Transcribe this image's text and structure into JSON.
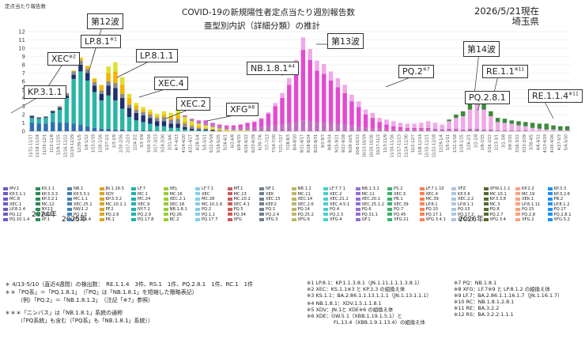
{
  "header": {
    "title": "COVID-19の新規陽性者定点当たり週別報告数",
    "subtitle": "亜型別内訳（詳細分類）の推計",
    "date": "2026/5/21現在",
    "location": "埼玉県",
    "y_unit_label": "定点当たり報告数"
  },
  "year_labels": [
    "2024年",
    "2025年",
    "2026年"
  ],
  "callouts": [
    {
      "name": "callout-kp311",
      "text": "KP.3.1.1",
      "sup": ""
    },
    {
      "name": "callout-xec",
      "text": "XEC",
      "sup": "※2"
    },
    {
      "name": "callout-lp81",
      "text": "LP.8.1",
      "sup": "※1"
    },
    {
      "name": "callout-wave12",
      "text": "第12波",
      "sup": ""
    },
    {
      "name": "callout-lp811",
      "text": "LP.8.1.1",
      "sup": ""
    },
    {
      "name": "callout-xec4",
      "text": "XEC.4",
      "sup": ""
    },
    {
      "name": "callout-xec2",
      "text": "XEC.2",
      "sup": ""
    },
    {
      "name": "callout-xfg",
      "text": "XFG",
      "sup": "※8"
    },
    {
      "name": "callout-nb181",
      "text": "NB.1.8.1",
      "sup": "※4"
    },
    {
      "name": "callout-wave13",
      "text": "第13波",
      "sup": ""
    },
    {
      "name": "callout-pq2",
      "text": "PQ.2",
      "sup": "※7"
    },
    {
      "name": "callout-wave14",
      "text": "第14波",
      "sup": ""
    },
    {
      "name": "callout-re11",
      "text": "RE.1.1",
      "sup": "※11"
    },
    {
      "name": "callout-pq281",
      "text": "PQ.2.8.1",
      "sup": ""
    },
    {
      "name": "callout-re114",
      "text": "RE.1.1.4",
      "sup": "※11"
    }
  ],
  "legend": [
    "MV.1",
    "KS.1.1",
    "NB.1",
    "JN.1.16.5",
    "LF.7",
    "XEL",
    "LF.7.1",
    "MT.1",
    "NF.1",
    "NB.1.2",
    "LF.7.7.1",
    "NB.1.3.1",
    "PS.2",
    "LF.7.1.10",
    "XFZ",
    "XFW.1.1.1",
    "KP.2.2",
    "KP.3.3",
    "KP.3.1.1",
    "KP.3.3.3",
    "KP.3.3.1",
    "XDY",
    "MC.1",
    "MC.16",
    "XEC",
    "MC.13",
    "XEK",
    "MC.11",
    "XEC.2",
    "MC.11",
    "XEC.5",
    "XEC.4",
    "KP.3.6",
    "MC.10.1",
    "MC.19",
    "KP.3.2.6",
    "MC.8",
    "KP.3.2.1",
    "MC.1.1",
    "KP.3.3.2",
    "MC.24",
    "XEC.2.1",
    "MC.28",
    "MC.10.2",
    "XEC.15",
    "XEC.14",
    "XEC.21.1",
    "XEC.20.1",
    "PB.1",
    "MC.39",
    "XEC.2.2",
    "KP.3.3.8",
    "XEK.1",
    "PB.2",
    "XEC.1",
    "MC.12",
    "XEC.25.1",
    "MC.10.2.1",
    "XEC.9",
    "XEC.18",
    "MC.10.1.6",
    "XEC.4.1",
    "KEP.2",
    "XEC.2.6",
    "XEC.4.5.1",
    "XEC.25.1.2",
    "XEC.39",
    "LP.8.1",
    "LP.8.1.1",
    "MC.3",
    "LP.8.1.11",
    "LP.8.1.2",
    "LP.8.1.4",
    "NY.13",
    "NW.1.2",
    "PF.2",
    "NY.7.1",
    "NB.1.8.1",
    "PQ.2",
    "PQ.5",
    "PQ.1",
    "PQ.14",
    "PQ.4",
    "PQ.6",
    "PQ.7",
    "PQ.10",
    "PQ.13",
    "PQ.8",
    "PQ.15",
    "PQ.17",
    "PQ.12",
    "PQ.2.1",
    "PQ.2.5",
    "PQ.2.6",
    "PQ.2.9",
    "PQ.26",
    "PQ.1.1",
    "PQ.34",
    "PQ.2.4",
    "PQ.25.2",
    "PQ.2.3",
    "PQ.31.1",
    "PQ.45",
    "PQ.17.1",
    "PQ.17.2",
    "PQ.2.7",
    "PQ.2.8",
    "PQ.2.8.1",
    "PQ.10.1.4",
    "XF.1",
    "PQ.2.4.4",
    "PK.1",
    "PQ.17.8",
    "RC.2",
    "PQ.17.7",
    "XFG",
    "XFG.3",
    "XFG.6",
    "XFG.4",
    "QF.1",
    "XFG.21",
    "XFG.3.4.1",
    "XFG.5.1",
    "XFG.3.4",
    "XFG.2",
    "XFG.5.2",
    "XFG.3.9",
    "XFG.3.4.5",
    "XFG.3.1",
    "RE.1.1",
    "RE.1.1.4",
    "RS.1"
  ],
  "footnotes": {
    "n1": "＊ 4/13-5/10（直近4週間）の検出数：　RE.1.1.4　3件、RS.1　1件、PQ.2.8.1　1件、RC.1　1件",
    "n2": "＊＊「PQ系」＝「PQ.1.8.1」　（「PQ」は「NB.1.8.1」を短縮した簡略表記）",
    "n3": "（例）「PQ.2」＝「NB.1.8.1.2」　（注記「※7」参照）",
    "n4": "＊＊＊「ニンバス」は「NB.1.8.1」系統の通称",
    "n5": "（「PQ系統」も含む（「PQ系」も「NB.1.8.1」系統））",
    "r1": "※1 LP.8.1：KP.1.1.3.8.1（JN.1.11.1.1.1.3.8.1）",
    "r2": "※2 XEC：KS.1.1※3 と KP.3.3 の組換え体",
    "r3": "※3 KS.1.1：BA.2.86.1.1.13.1.1.1（JN.1.13.1.1.1）",
    "r4": "※4 NB.1.8.1：XDV.1.5.1.1.8.1",
    "r5": "※5 XDV：JN.1と XDE※6 の組換え体",
    "r6": "※6 XDE：GW.5.1（XBB.1.19.1.5.1）と",
    "r6b": "FL.13.4（XBB.1.9.1.13.4）の組換え体",
    "r7": "※7 PQ：NB.1.8.1",
    "r8": "※8 XFG：LF.7※9 と LP.8.1.2 の組換え体",
    "r9": "※9 LF.7：BA.2.86.1.1.16.1.7（JN.1.16.1.7）",
    "r10": "※10 RC：NB.1.8.1.2.8.1",
    "r11": "※11 RE：BA.3.2.2",
    "r12": "※12 RS：BA.3.2.2.1.1.1"
  },
  "chart_data": {
    "type": "bar",
    "stacked": true,
    "ylim": [
      0,
      12
    ],
    "yticks": [
      0,
      1,
      2,
      3,
      4,
      5,
      6,
      7,
      8,
      9,
      10,
      11,
      12
    ],
    "grid": true,
    "x": [
      "11/11-11/17",
      "11/18-11/24",
      "11/25-12/1",
      "12/2-12/8",
      "12/9-12/15",
      "12/16-12/22",
      "12/23-12/29",
      "12/30-1/5",
      "1/6-1/12",
      "1/13-1/19",
      "1/20-1/26",
      "1/27-2/2",
      "2/3-2/9",
      "2/10-2/16",
      "2/17-2/23",
      "2/24-3/2",
      "3/3-3/9",
      "3/10-3/16",
      "3/17-3/23",
      "3/24-3/30",
      "3/31-4/6",
      "4/7-4/13",
      "4/14-4/20",
      "4/21-4/27",
      "4/28-5/4",
      "5/5-5/11",
      "5/12-5/18",
      "5/19-5/25",
      "5/26-6/1",
      "6/2-6/8",
      "6/9-6/15",
      "6/16-6/22",
      "6/23-6/29",
      "6/30-7/6",
      "7/7-7/13",
      "7/14-7/20",
      "7/21-7/27",
      "7/28-8/3",
      "8/4-8/10",
      "8/11-8/17",
      "8/18-8/24",
      "8/25-8/31",
      "9/1-9/7",
      "9/8-9/14",
      "9/15-9/21",
      "9/22-9/28",
      "9/29-10/5",
      "10/6-10/12",
      "10/13-10/19",
      "10/20-10/26",
      "10/27-11/2",
      "11/3-11/9",
      "11/10-11/16",
      "11/17-11/23",
      "11/24-11/30",
      "12/1-12/7",
      "12/8-12/14",
      "12/15-12/21",
      "12/22-12/28",
      "12/29-1/4",
      "1/5-1/11",
      "1/12-1/18",
      "1/19-1/25",
      "1/26-2/1",
      "2/2-2/8",
      "2/9-2/15",
      "2/16-2/22",
      "2/23-3/1",
      "3/2-3/8",
      "3/9-3/15",
      "3/16-3/22",
      "3/23-3/29",
      "3/30-4/5",
      "4/6-4/12",
      "4/13-4/19",
      "4/20-4/26",
      "4/27-5/3",
      "5/4-5/10"
    ],
    "totals": [
      1.9,
      1.7,
      1.8,
      2.5,
      3.0,
      4.6,
      7.3,
      8.9,
      7.9,
      6.4,
      5.6,
      7.8,
      8.3,
      6.5,
      4.5,
      3.4,
      2.9,
      2.6,
      2.1,
      2.4,
      2.2,
      2.7,
      1.9,
      1.5,
      1.3,
      1.3,
      1.0,
      0.8,
      0.7,
      0.7,
      0.8,
      1.0,
      1.2,
      1.6,
      2.3,
      3.4,
      4.6,
      6.4,
      8.6,
      11.3,
      9.9,
      8.5,
      8.1,
      7.2,
      6.4,
      5.6,
      4.4,
      3.6,
      2.6,
      2.2,
      1.6,
      1.4,
      1.2,
      1.0,
      0.9,
      0.9,
      1.0,
      1.2,
      1.0,
      0.8,
      1.4,
      2.0,
      2.4,
      3.3,
      4.0,
      3.3,
      2.4,
      1.6,
      1.5,
      1.3,
      1.2,
      1.1,
      1.0,
      0.9,
      0.9,
      0.7,
      0.6,
      0.6
    ],
    "series": [
      {
        "name": "KP.3.1.1",
        "color": "#2f6fb0",
        "values": [
          1.0,
          0.9,
          0.9,
          1.1,
          1.0,
          1.0,
          0.9,
          0.8,
          0.6,
          0.4,
          0.3,
          0.3,
          0.2,
          0.2,
          0.1,
          0.1,
          0.1,
          0.1,
          0,
          0,
          0,
          0,
          0,
          0,
          0,
          0,
          0,
          0,
          0,
          0,
          0,
          0,
          0,
          0,
          0,
          0,
          0,
          0,
          0,
          0,
          0,
          0,
          0,
          0,
          0,
          0,
          0,
          0,
          0,
          0,
          0,
          0,
          0,
          0,
          0,
          0,
          0,
          0,
          0,
          0,
          0,
          0,
          0,
          0,
          0,
          0,
          0,
          0,
          0,
          0,
          0,
          0,
          0,
          0,
          0,
          0,
          0,
          0
        ]
      },
      {
        "name": "XEC",
        "color": "#2bb5a5",
        "values": [
          0.6,
          0.6,
          0.7,
          1.1,
          1.6,
          3.0,
          5.4,
          6.4,
          5.5,
          4.3,
          3.4,
          4.0,
          3.5,
          2.5,
          1.6,
          1.2,
          1.0,
          0.8,
          0.6,
          0.6,
          0.4,
          0.4,
          0.2,
          0.1,
          0.1,
          0.1,
          0,
          0,
          0,
          0,
          0,
          0,
          0,
          0,
          0,
          0,
          0,
          0,
          0,
          0,
          0,
          0,
          0,
          0,
          0,
          0,
          0,
          0,
          0,
          0,
          0,
          0,
          0,
          0,
          0,
          0,
          0,
          0,
          0,
          0,
          0,
          0,
          0,
          0,
          0,
          0,
          0,
          0,
          0,
          0,
          0,
          0,
          0,
          0,
          0,
          0,
          0,
          0
        ]
      },
      {
        "name": "XEC.4",
        "color": "#1e2f6e",
        "values": [
          0.2,
          0.1,
          0.1,
          0.2,
          0.2,
          0.3,
          0.5,
          0.8,
          0.9,
          0.8,
          0.8,
          1.2,
          1.5,
          1.3,
          1.1,
          0.9,
          0.8,
          0.7,
          0.6,
          0.6,
          0.5,
          0.5,
          0.3,
          0.2,
          0.1,
          0.1,
          0.1,
          0,
          0,
          0,
          0,
          0,
          0,
          0,
          0,
          0,
          0,
          0,
          0,
          0,
          0,
          0,
          0,
          0,
          0,
          0,
          0,
          0,
          0,
          0,
          0,
          0,
          0,
          0,
          0,
          0,
          0,
          0,
          0,
          0,
          0,
          0,
          0,
          0,
          0,
          0,
          0,
          0,
          0,
          0,
          0,
          0,
          0,
          0,
          0,
          0,
          0,
          0
        ]
      },
      {
        "name": "XEC.2",
        "color": "#8a8a8a",
        "values": [
          0.1,
          0.1,
          0.1,
          0.1,
          0.2,
          0.3,
          0.4,
          0.5,
          0.5,
          0.4,
          0.4,
          0.5,
          0.6,
          0.5,
          0.4,
          0.4,
          0.4,
          0.4,
          0.4,
          0.5,
          0.5,
          0.6,
          0.4,
          0.3,
          0.2,
          0.1,
          0.1,
          0.1,
          0,
          0,
          0,
          0,
          0,
          0,
          0,
          0,
          0,
          0,
          0,
          0,
          0,
          0,
          0,
          0,
          0,
          0,
          0,
          0,
          0,
          0,
          0,
          0,
          0,
          0,
          0,
          0,
          0,
          0,
          0,
          0,
          0,
          0,
          0,
          0,
          0,
          0,
          0,
          0,
          0,
          0,
          0,
          0,
          0,
          0,
          0,
          0,
          0,
          0
        ]
      },
      {
        "name": "LP.8.1",
        "color": "#f2b400",
        "values": [
          0,
          0,
          0,
          0,
          0,
          0,
          0.1,
          0.3,
          0.3,
          0.4,
          0.6,
          1.0,
          1.4,
          1.1,
          0.8,
          0.5,
          0.3,
          0.3,
          0.2,
          0.3,
          0.3,
          0.4,
          0.3,
          0.2,
          0.2,
          0.1,
          0.1,
          0.1,
          0.1,
          0,
          0,
          0,
          0,
          0,
          0,
          0,
          0,
          0,
          0,
          0,
          0,
          0,
          0,
          0,
          0,
          0,
          0,
          0,
          0,
          0,
          0,
          0,
          0,
          0,
          0,
          0,
          0,
          0,
          0,
          0,
          0,
          0,
          0,
          0,
          0,
          0,
          0,
          0,
          0,
          0,
          0,
          0,
          0,
          0,
          0,
          0,
          0,
          0
        ]
      },
      {
        "name": "LP.8.1.1",
        "color": "#e0e030",
        "values": [
          0,
          0,
          0,
          0,
          0,
          0,
          0,
          0.1,
          0.1,
          0.1,
          0.1,
          0.8,
          1.1,
          0.9,
          0.5,
          0.3,
          0.3,
          0.3,
          0.3,
          0.4,
          0.5,
          0.6,
          0.5,
          0.4,
          0.3,
          0.3,
          0.2,
          0.1,
          0.1,
          0.1,
          0.1,
          0.1,
          0,
          0,
          0,
          0,
          0,
          0,
          0,
          0,
          0,
          0,
          0,
          0,
          0,
          0,
          0,
          0,
          0,
          0,
          0,
          0,
          0,
          0,
          0,
          0,
          0,
          0,
          0,
          0,
          0,
          0,
          0,
          0,
          0,
          0,
          0,
          0,
          0,
          0,
          0,
          0,
          0,
          0,
          0,
          0,
          0,
          0
        ]
      },
      {
        "name": "XFG",
        "color": "#c070c0",
        "values": [
          0,
          0,
          0,
          0,
          0,
          0,
          0,
          0,
          0,
          0,
          0,
          0,
          0,
          0,
          0,
          0,
          0,
          0,
          0,
          0,
          0,
          0.2,
          0.2,
          0.3,
          0.3,
          0.4,
          0.3,
          0.3,
          0.3,
          0.3,
          0.3,
          0.4,
          0.4,
          0.5,
          0.6,
          0.7,
          0.8,
          1.0,
          1.1,
          1.3,
          1.2,
          1.1,
          1.1,
          1.0,
          0.9,
          0.8,
          0.6,
          0.5,
          0.4,
          0.3,
          0.3,
          0.2,
          0.2,
          0.2,
          0.2,
          0.2,
          0.2,
          0.2,
          0.2,
          0.1,
          0.2,
          0.2,
          0.2,
          0.3,
          0.3,
          0.2,
          0.2,
          0.1,
          0.1,
          0.1,
          0.1,
          0.1,
          0,
          0,
          0,
          0,
          0,
          0
        ]
      },
      {
        "name": "NB.1.8.1",
        "color": "#e14bd0",
        "values": [
          0,
          0,
          0,
          0,
          0,
          0,
          0,
          0,
          0,
          0,
          0,
          0,
          0,
          0,
          0,
          0,
          0,
          0,
          0,
          0,
          0,
          0,
          0,
          0,
          0.1,
          0.2,
          0.2,
          0.2,
          0.2,
          0.3,
          0.4,
          0.5,
          0.7,
          1.0,
          1.5,
          2.3,
          3.2,
          4.6,
          6.4,
          8.5,
          7.4,
          6.2,
          5.8,
          5.1,
          4.4,
          3.8,
          3.0,
          2.4,
          1.6,
          1.3,
          0.8,
          0.6,
          0.4,
          0.3,
          0.2,
          0.2,
          0.2,
          0.2,
          0.1,
          0.1,
          0.1,
          0.1,
          0,
          0,
          0,
          0,
          0,
          0,
          0,
          0,
          0,
          0,
          0,
          0,
          0,
          0,
          0,
          0
        ]
      },
      {
        "name": "PQ.2",
        "color": "#f0a8e8",
        "values": [
          0,
          0,
          0,
          0,
          0,
          0,
          0,
          0,
          0,
          0,
          0,
          0,
          0,
          0,
          0,
          0,
          0,
          0,
          0,
          0,
          0,
          0,
          0,
          0,
          0,
          0,
          0,
          0,
          0,
          0,
          0,
          0,
          0.1,
          0.1,
          0.2,
          0.4,
          0.6,
          0.8,
          1.1,
          1.5,
          1.3,
          1.2,
          1.2,
          1.1,
          1.1,
          1.0,
          0.8,
          0.7,
          0.6,
          0.6,
          0.5,
          0.6,
          0.6,
          0.5,
          0.5,
          0.5,
          0.6,
          0.8,
          0.7,
          0.6,
          0.9,
          1.3,
          1.6,
          2.3,
          2.9,
          2.4,
          1.6,
          1.0,
          0.9,
          0.8,
          0.6,
          0.5,
          0.4,
          0.3,
          0.2,
          0.2,
          0.1,
          0.1
        ]
      },
      {
        "name": "RE.1.1",
        "color": "#3a8a3a",
        "values": [
          0,
          0,
          0,
          0,
          0,
          0,
          0,
          0,
          0,
          0,
          0,
          0,
          0,
          0,
          0,
          0,
          0,
          0,
          0,
          0,
          0,
          0,
          0,
          0,
          0,
          0,
          0,
          0,
          0,
          0,
          0,
          0,
          0,
          0,
          0,
          0,
          0,
          0,
          0,
          0,
          0,
          0,
          0,
          0,
          0,
          0,
          0,
          0,
          0,
          0,
          0,
          0,
          0,
          0,
          0,
          0,
          0,
          0,
          0,
          0,
          0.2,
          0.4,
          0.6,
          0.7,
          0.8,
          0.7,
          0.6,
          0.5,
          0.5,
          0.4,
          0.5,
          0.5,
          0.6,
          0.6,
          0.7,
          0.5,
          0.5,
          0.5
        ]
      }
    ]
  }
}
